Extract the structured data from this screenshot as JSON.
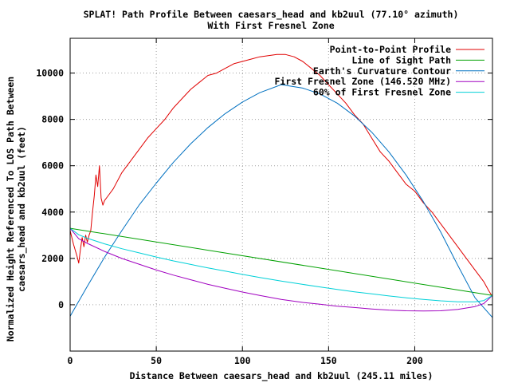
{
  "chart_data": {
    "type": "line",
    "title": "SPLAT! Path Profile Between caesars_head and kb2uul (77.10° azimuth)",
    "subtitle": "With First Fresnel Zone",
    "xlabel": "Distance Between caesars_head and kb2uul (245.11 miles)",
    "ylabel_line1": "Normalized Height Referenced To LOS Path Between",
    "ylabel_line2": "caesars_head and kb2uul (feet)",
    "xlim": [
      0,
      245.11
    ],
    "ylim": [
      -2000,
      11500
    ],
    "xticks": [
      0,
      50,
      100,
      150,
      200
    ],
    "yticks": [
      0,
      2000,
      4000,
      6000,
      8000,
      10000
    ],
    "grid": true,
    "legend_position": "top-right",
    "series": [
      {
        "name": "Point-to-Point Profile",
        "color": "#e00000",
        "x": [
          0,
          2,
          4,
          5,
          6,
          7,
          8,
          9,
          10,
          11,
          12,
          13,
          14,
          15,
          16,
          17,
          18,
          19,
          20,
          22,
          25,
          30,
          35,
          40,
          45,
          50,
          55,
          60,
          65,
          70,
          75,
          80,
          85,
          90,
          95,
          100,
          105,
          110,
          115,
          120,
          125,
          130,
          135,
          140,
          145,
          150,
          155,
          160,
          165,
          170,
          175,
          180,
          185,
          190,
          195,
          200,
          205,
          210,
          215,
          220,
          225,
          230,
          235,
          240,
          243,
          245.11
        ],
        "y": [
          3200,
          2600,
          2100,
          1800,
          2400,
          2900,
          2500,
          3000,
          2700,
          3000,
          3200,
          4000,
          4700,
          5600,
          5100,
          6000,
          4600,
          4300,
          4500,
          4700,
          5000,
          5700,
          6200,
          6700,
          7200,
          7600,
          8000,
          8500,
          8900,
          9300,
          9600,
          9900,
          10000,
          10200,
          10400,
          10500,
          10600,
          10700,
          10750,
          10800,
          10800,
          10700,
          10500,
          10200,
          9900,
          9500,
          9100,
          8700,
          8200,
          7800,
          7200,
          6600,
          6200,
          5700,
          5200,
          4900,
          4400,
          4000,
          3500,
          3000,
          2500,
          2000,
          1500,
          1000,
          600,
          350
        ]
      },
      {
        "name": "Line of Sight Path",
        "color": "#00a000",
        "x": [
          0,
          245.11
        ],
        "y": [
          3300,
          400
        ]
      },
      {
        "name": "Earth's Curvature Contour",
        "color": "#0070c0",
        "x": [
          0,
          10,
          20,
          30,
          40,
          50,
          60,
          70,
          80,
          90,
          100,
          110,
          122.5,
          135,
          145,
          155,
          165,
          175,
          185,
          195,
          205,
          215,
          225,
          235,
          245.11
        ],
        "y": [
          -500,
          800,
          2050,
          3200,
          4300,
          5250,
          6150,
          6950,
          7650,
          8250,
          8750,
          9150,
          9500,
          9350,
          9100,
          8700,
          8150,
          7450,
          6600,
          5600,
          4450,
          3150,
          1700,
          300,
          -550
        ]
      },
      {
        "name": "First Fresnel Zone (146.520 MHz)",
        "color": "#a000c0",
        "x": [
          0,
          5,
          10,
          20,
          30,
          40,
          50,
          60,
          70,
          80,
          90,
          100,
          110,
          122.5,
          135,
          145,
          155,
          165,
          175,
          185,
          195,
          205,
          215,
          225,
          235,
          240,
          245.11
        ],
        "y": [
          3300,
          2850,
          2650,
          2300,
          2000,
          1750,
          1500,
          1280,
          1080,
          880,
          710,
          550,
          400,
          230,
          100,
          20,
          -60,
          -120,
          -180,
          -230,
          -260,
          -270,
          -260,
          -200,
          -80,
          50,
          400
        ]
      },
      {
        "name": "60% of First Fresnel Zone",
        "color": "#00d0d8",
        "x": [
          0,
          5,
          10,
          20,
          30,
          40,
          50,
          60,
          70,
          80,
          90,
          100,
          110,
          122.5,
          135,
          145,
          155,
          165,
          175,
          185,
          195,
          205,
          215,
          225,
          235,
          240,
          245.11
        ],
        "y": [
          3300,
          3020,
          2870,
          2630,
          2420,
          2240,
          2060,
          1890,
          1740,
          1590,
          1450,
          1310,
          1180,
          1020,
          880,
          770,
          660,
          560,
          470,
          380,
          300,
          230,
          170,
          130,
          130,
          180,
          400
        ]
      }
    ]
  }
}
